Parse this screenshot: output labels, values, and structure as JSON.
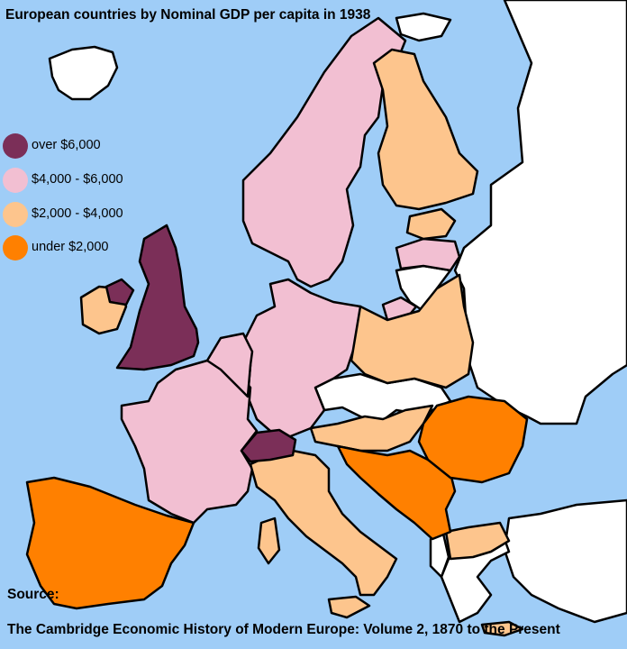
{
  "title": "European countries by Nominal GDP per capita in 1938",
  "legend": [
    {
      "label": "over $6,000",
      "color": "#7b2f58",
      "category": "over"
    },
    {
      "label": "$4,000 - $6,000",
      "color": "#f2bfd2",
      "category": "high"
    },
    {
      "label": "$2,000 - $4,000",
      "color": "#fdc58d",
      "category": "mid"
    },
    {
      "label": "under $2,000",
      "color": "#ff8000",
      "category": "low"
    }
  ],
  "colors": {
    "sea": "#9fcdf7",
    "no_data": "#ffffff",
    "border": "#000000"
  },
  "source": {
    "label": "Source:",
    "text": "The Cambridge Economic History of Modern Europe: Volume 2, 1870 to the Present"
  }
}
